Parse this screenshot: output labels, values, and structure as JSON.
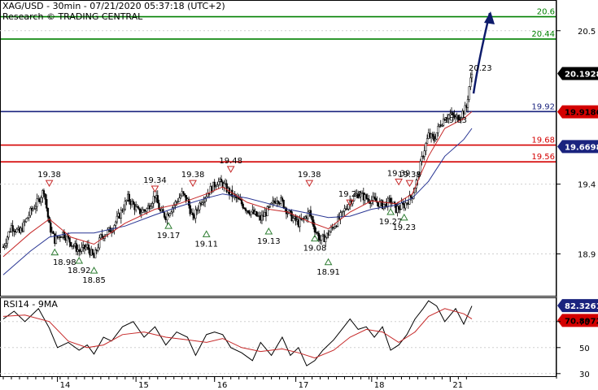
{
  "header": {
    "line1": "XAG/USD - 30min - 07/21/2020 05:37:18 (UTC+2)",
    "line2": "Research © TRADING CENTRAL"
  },
  "colors": {
    "green": "#008000",
    "red": "#d40000",
    "blue": "#1a237e",
    "candle": "#000000",
    "ma_red": "#c62828",
    "ma_blue": "#283593",
    "marker_green": "#2e7d32",
    "marker_red": "#c62828",
    "arrow": "#0d1b6b"
  },
  "chart_data": [
    {
      "type": "candlestick",
      "panel": "price",
      "y_ticks": [
        "20.5",
        "19.4",
        "18.9"
      ],
      "y_tick_values": [
        20.5,
        19.4,
        18.9
      ],
      "ylim": [
        18.6,
        20.72
      ],
      "x_ticks": [
        "14",
        "15",
        "16",
        "17",
        "18",
        "21"
      ],
      "levels": [
        {
          "label": "20.6",
          "value": 20.6,
          "color": "green"
        },
        {
          "label": "20.44",
          "value": 20.44,
          "color": "green"
        },
        {
          "label": "19.92",
          "value": 19.92,
          "color": "blue"
        },
        {
          "label": "19.68",
          "value": 19.68,
          "color": "red"
        },
        {
          "label": "19.56",
          "value": 19.56,
          "color": "red"
        }
      ],
      "badges": [
        {
          "label": "20.1928",
          "value": 20.1928,
          "bg": "#000000",
          "fg": "#ffffff"
        },
        {
          "label": "19.9186",
          "value": 19.9186,
          "bg": "#d40000",
          "fg": "#000000"
        },
        {
          "label": "19.6698",
          "value": 19.6698,
          "bg": "#1a237e",
          "fg": "#ffffff"
        }
      ],
      "forecast_label": "20.23",
      "ma_label": "19.83",
      "highs": [
        {
          "label": "19.38",
          "value": 19.38
        },
        {
          "label": "19.34",
          "value": 19.34
        },
        {
          "label": "19.38",
          "value": 19.38
        },
        {
          "label": "19.48",
          "value": 19.48
        },
        {
          "label": "19.38",
          "value": 19.38
        },
        {
          "label": "19.24",
          "value": 19.24
        },
        {
          "label": "19.39",
          "value": 19.39
        },
        {
          "label": "19.38",
          "value": 19.38
        }
      ],
      "lows": [
        {
          "label": "18.98",
          "value": 18.98
        },
        {
          "label": "18.92",
          "value": 18.92
        },
        {
          "label": "18.85",
          "value": 18.85
        },
        {
          "label": "19.17",
          "value": 19.17
        },
        {
          "label": "19.11",
          "value": 19.11
        },
        {
          "label": "19.13",
          "value": 19.13
        },
        {
          "label": "19.08",
          "value": 19.08
        },
        {
          "label": "18.91",
          "value": 18.91
        },
        {
          "label": "19.27",
          "value": 19.27
        },
        {
          "label": "19.23",
          "value": 19.23
        }
      ],
      "close_path": [
        [
          0,
          18.95
        ],
        [
          6,
          19.1
        ],
        [
          12,
          19.05
        ],
        [
          20,
          19.2
        ],
        [
          26,
          19.28
        ],
        [
          30,
          19.36
        ],
        [
          34,
          19.1
        ],
        [
          38,
          19.0
        ],
        [
          44,
          19.05
        ],
        [
          50,
          18.98
        ],
        [
          56,
          18.92
        ],
        [
          62,
          18.95
        ],
        [
          67,
          18.87
        ],
        [
          72,
          19.02
        ],
        [
          80,
          19.08
        ],
        [
          86,
          19.18
        ],
        [
          92,
          19.3
        ],
        [
          96,
          19.25
        ],
        [
          100,
          19.2
        ],
        [
          106,
          19.22
        ],
        [
          112,
          19.32
        ],
        [
          116,
          19.2
        ],
        [
          120,
          19.17
        ],
        [
          126,
          19.25
        ],
        [
          132,
          19.33
        ],
        [
          136,
          19.28
        ],
        [
          140,
          19.15
        ],
        [
          146,
          19.28
        ],
        [
          152,
          19.35
        ],
        [
          158,
          19.42
        ],
        [
          162,
          19.4
        ],
        [
          168,
          19.33
        ],
        [
          174,
          19.28
        ],
        [
          180,
          19.22
        ],
        [
          186,
          19.18
        ],
        [
          190,
          19.15
        ],
        [
          196,
          19.22
        ],
        [
          202,
          19.3
        ],
        [
          206,
          19.27
        ],
        [
          210,
          19.2
        ],
        [
          214,
          19.15
        ],
        [
          218,
          19.12
        ],
        [
          222,
          19.15
        ],
        [
          226,
          19.2
        ],
        [
          230,
          19.08
        ],
        [
          234,
          19.0
        ],
        [
          238,
          19.02
        ],
        [
          244,
          19.1
        ],
        [
          250,
          19.18
        ],
        [
          256,
          19.28
        ],
        [
          262,
          19.33
        ],
        [
          268,
          19.3
        ],
        [
          274,
          19.28
        ],
        [
          280,
          19.25
        ],
        [
          286,
          19.28
        ],
        [
          290,
          19.22
        ],
        [
          296,
          19.25
        ],
        [
          302,
          19.32
        ],
        [
          306,
          19.45
        ],
        [
          310,
          19.62
        ],
        [
          314,
          19.75
        ],
        [
          318,
          19.72
        ],
        [
          322,
          19.82
        ],
        [
          326,
          19.88
        ],
        [
          330,
          19.9
        ],
        [
          334,
          19.87
        ],
        [
          338,
          19.9
        ],
        [
          342,
          19.95
        ],
        [
          344,
          20.1
        ],
        [
          346,
          20.19
        ]
      ],
      "ma_fast": [
        [
          0,
          18.88
        ],
        [
          20,
          19.05
        ],
        [
          34,
          19.15
        ],
        [
          50,
          19.02
        ],
        [
          67,
          18.97
        ],
        [
          90,
          19.12
        ],
        [
          112,
          19.22
        ],
        [
          130,
          19.26
        ],
        [
          150,
          19.33
        ],
        [
          162,
          19.38
        ],
        [
          180,
          19.27
        ],
        [
          196,
          19.22
        ],
        [
          210,
          19.2
        ],
        [
          226,
          19.13
        ],
        [
          240,
          19.08
        ],
        [
          256,
          19.2
        ],
        [
          272,
          19.28
        ],
        [
          290,
          19.26
        ],
        [
          302,
          19.33
        ],
        [
          314,
          19.6
        ],
        [
          326,
          19.8
        ],
        [
          340,
          19.87
        ],
        [
          346,
          19.92
        ]
      ],
      "ma_slow": [
        [
          0,
          18.75
        ],
        [
          20,
          18.92
        ],
        [
          34,
          19.02
        ],
        [
          50,
          19.05
        ],
        [
          67,
          19.05
        ],
        [
          90,
          19.1
        ],
        [
          112,
          19.18
        ],
        [
          130,
          19.24
        ],
        [
          150,
          19.3
        ],
        [
          162,
          19.33
        ],
        [
          180,
          19.3
        ],
        [
          196,
          19.26
        ],
        [
          210,
          19.22
        ],
        [
          226,
          19.19
        ],
        [
          240,
          19.16
        ],
        [
          256,
          19.17
        ],
        [
          272,
          19.22
        ],
        [
          290,
          19.25
        ],
        [
          302,
          19.3
        ],
        [
          314,
          19.42
        ],
        [
          326,
          19.6
        ],
        [
          340,
          19.72
        ],
        [
          346,
          19.8
        ]
      ]
    },
    {
      "type": "line",
      "panel": "rsi",
      "title": "RSI14 - 9MA",
      "y_ticks": [
        "70",
        "50",
        "30"
      ],
      "y_tick_values": [
        70,
        50,
        30
      ],
      "ylim": [
        28,
        88
      ],
      "badges": [
        {
          "label": "82.3261",
          "value": 82.3261,
          "bg": "#1a237e",
          "fg": "#ffffff"
        },
        {
          "label": "70.8972",
          "value": 70.8972,
          "bg": "#d40000",
          "fg": "#000000"
        }
      ],
      "rsi": [
        [
          0,
          72
        ],
        [
          8,
          78
        ],
        [
          16,
          70
        ],
        [
          26,
          80
        ],
        [
          34,
          65
        ],
        [
          40,
          50
        ],
        [
          48,
          54
        ],
        [
          56,
          48
        ],
        [
          62,
          52
        ],
        [
          67,
          45
        ],
        [
          74,
          58
        ],
        [
          80,
          55
        ],
        [
          88,
          66
        ],
        [
          96,
          70
        ],
        [
          104,
          58
        ],
        [
          112,
          66
        ],
        [
          120,
          52
        ],
        [
          128,
          62
        ],
        [
          136,
          58
        ],
        [
          142,
          44
        ],
        [
          150,
          60
        ],
        [
          156,
          62
        ],
        [
          162,
          60
        ],
        [
          168,
          50
        ],
        [
          176,
          46
        ],
        [
          184,
          40
        ],
        [
          190,
          54
        ],
        [
          198,
          44
        ],
        [
          206,
          58
        ],
        [
          212,
          44
        ],
        [
          218,
          50
        ],
        [
          224,
          36
        ],
        [
          230,
          40
        ],
        [
          236,
          48
        ],
        [
          244,
          56
        ],
        [
          250,
          64
        ],
        [
          256,
          72
        ],
        [
          262,
          64
        ],
        [
          268,
          66
        ],
        [
          274,
          58
        ],
        [
          280,
          66
        ],
        [
          286,
          48
        ],
        [
          292,
          52
        ],
        [
          298,
          60
        ],
        [
          304,
          72
        ],
        [
          310,
          80
        ],
        [
          314,
          86
        ],
        [
          320,
          82
        ],
        [
          326,
          70
        ],
        [
          334,
          80
        ],
        [
          340,
          68
        ],
        [
          346,
          82
        ]
      ],
      "rsi_ma": [
        [
          0,
          74
        ],
        [
          16,
          75
        ],
        [
          34,
          70
        ],
        [
          48,
          55
        ],
        [
          62,
          50
        ],
        [
          74,
          52
        ],
        [
          88,
          60
        ],
        [
          104,
          62
        ],
        [
          120,
          58
        ],
        [
          136,
          56
        ],
        [
          150,
          54
        ],
        [
          162,
          57
        ],
        [
          176,
          50
        ],
        [
          190,
          47
        ],
        [
          206,
          49
        ],
        [
          218,
          46
        ],
        [
          230,
          42
        ],
        [
          244,
          48
        ],
        [
          256,
          58
        ],
        [
          268,
          64
        ],
        [
          280,
          62
        ],
        [
          292,
          54
        ],
        [
          304,
          62
        ],
        [
          314,
          74
        ],
        [
          326,
          80
        ],
        [
          340,
          76
        ],
        [
          346,
          72
        ]
      ]
    }
  ]
}
